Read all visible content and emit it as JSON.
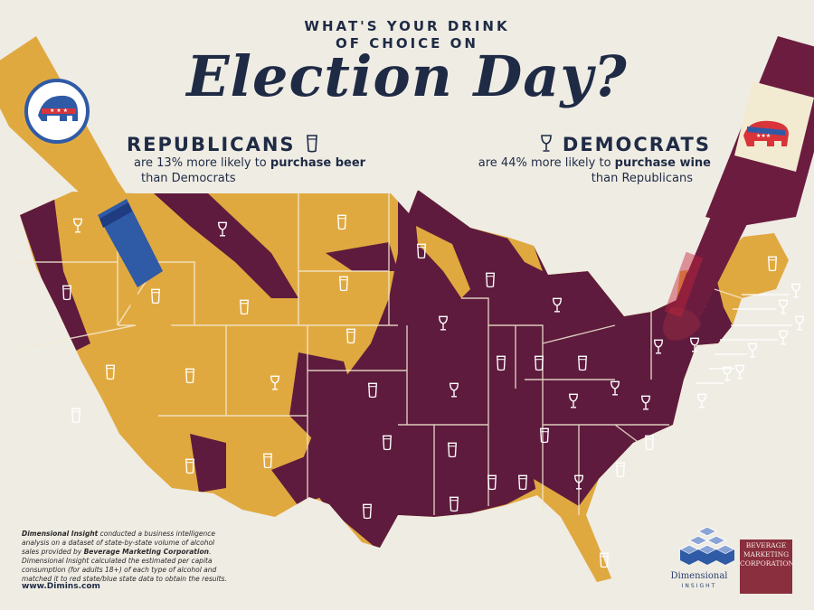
{
  "header": {
    "kicker_line1": "WHAT'S YOUR DRINK",
    "kicker_line2": "OF CHOICE ON",
    "title": "Election Day?"
  },
  "republicans": {
    "name": "REPUBLICANS",
    "line1_prefix": "are 13% more likely to ",
    "line1_bold": "purchase beer",
    "line2": "than Democrats",
    "icon": "beer-glass-icon"
  },
  "democrats": {
    "name": "DEMOCRATS",
    "line1_prefix": "are 44% more likely to ",
    "line1_bold": "purchase wine",
    "line2": "than Republicans",
    "icon": "wine-glass-icon"
  },
  "footnote": {
    "company1": "Dimensional Insight",
    "text1": " conducted a business intelligence analysis on a dataset of state-by-state volume of alcohol sales provided by ",
    "company2": "Beverage Marketing Corporation",
    "text2": ". Dimensional Insight calculated the estimated per capita consumption (for adults 18+) of each type of alcohol and matched it to red state/blue state data to obtain the results."
  },
  "website": "www.Dimins.com",
  "logos": {
    "di_line1": "Dimensional",
    "di_line2": "INSIGHT",
    "bmc_line1": "BEVERAGE",
    "bmc_line2": "MARKETING",
    "bmc_line3": "CORPORATION"
  },
  "colors": {
    "background": "#efece4",
    "beer": "#e0a940",
    "wine": "#5e1b3d",
    "navy": "#1f2b45",
    "bottle_blue": "#2f5aa6"
  },
  "states": [
    {
      "abbr": "WA",
      "drink": "wine"
    },
    {
      "abbr": "OR",
      "drink": "beer"
    },
    {
      "abbr": "CA",
      "drink": "beer"
    },
    {
      "abbr": "NV",
      "drink": "beer"
    },
    {
      "abbr": "ID",
      "drink": "beer"
    },
    {
      "abbr": "MT",
      "drink": "wine"
    },
    {
      "abbr": "WY",
      "drink": "beer"
    },
    {
      "abbr": "UT",
      "drink": "beer"
    },
    {
      "abbr": "CO",
      "drink": "wine"
    },
    {
      "abbr": "AZ",
      "drink": "beer"
    },
    {
      "abbr": "NM",
      "drink": "beer"
    },
    {
      "abbr": "ND",
      "drink": "beer"
    },
    {
      "abbr": "SD",
      "drink": "beer"
    },
    {
      "abbr": "NE",
      "drink": "beer"
    },
    {
      "abbr": "KS",
      "drink": "beer"
    },
    {
      "abbr": "OK",
      "drink": "beer"
    },
    {
      "abbr": "TX",
      "drink": "beer"
    },
    {
      "abbr": "MN",
      "drink": "beer"
    },
    {
      "abbr": "IA",
      "drink": "wine"
    },
    {
      "abbr": "MO",
      "drink": "wine"
    },
    {
      "abbr": "AR",
      "drink": "beer"
    },
    {
      "abbr": "LA",
      "drink": "beer"
    },
    {
      "abbr": "WI",
      "drink": "beer"
    },
    {
      "abbr": "IL",
      "drink": "beer"
    },
    {
      "abbr": "MI",
      "drink": "wine"
    },
    {
      "abbr": "IN",
      "drink": "beer"
    },
    {
      "abbr": "OH",
      "drink": "beer"
    },
    {
      "abbr": "KY",
      "drink": "wine"
    },
    {
      "abbr": "TN",
      "drink": "beer"
    },
    {
      "abbr": "MS",
      "drink": "beer"
    },
    {
      "abbr": "AL",
      "drink": "beer"
    },
    {
      "abbr": "GA",
      "drink": "wine"
    },
    {
      "abbr": "FL",
      "drink": "beer"
    },
    {
      "abbr": "SC",
      "drink": "beer"
    },
    {
      "abbr": "NC",
      "drink": "beer"
    },
    {
      "abbr": "VA",
      "drink": "wine"
    },
    {
      "abbr": "WV",
      "drink": "wine"
    },
    {
      "abbr": "PA",
      "drink": "wine"
    },
    {
      "abbr": "NY",
      "drink": "wine"
    },
    {
      "abbr": "ME",
      "drink": "beer"
    },
    {
      "abbr": "VT",
      "drink": "wine"
    },
    {
      "abbr": "NH",
      "drink": "wine"
    },
    {
      "abbr": "MA",
      "drink": "wine"
    },
    {
      "abbr": "RI",
      "drink": "wine"
    },
    {
      "abbr": "CT",
      "drink": "wine"
    },
    {
      "abbr": "NJ",
      "drink": "wine"
    },
    {
      "abbr": "DE",
      "drink": "wine"
    },
    {
      "abbr": "MD",
      "drink": "wine"
    }
  ]
}
